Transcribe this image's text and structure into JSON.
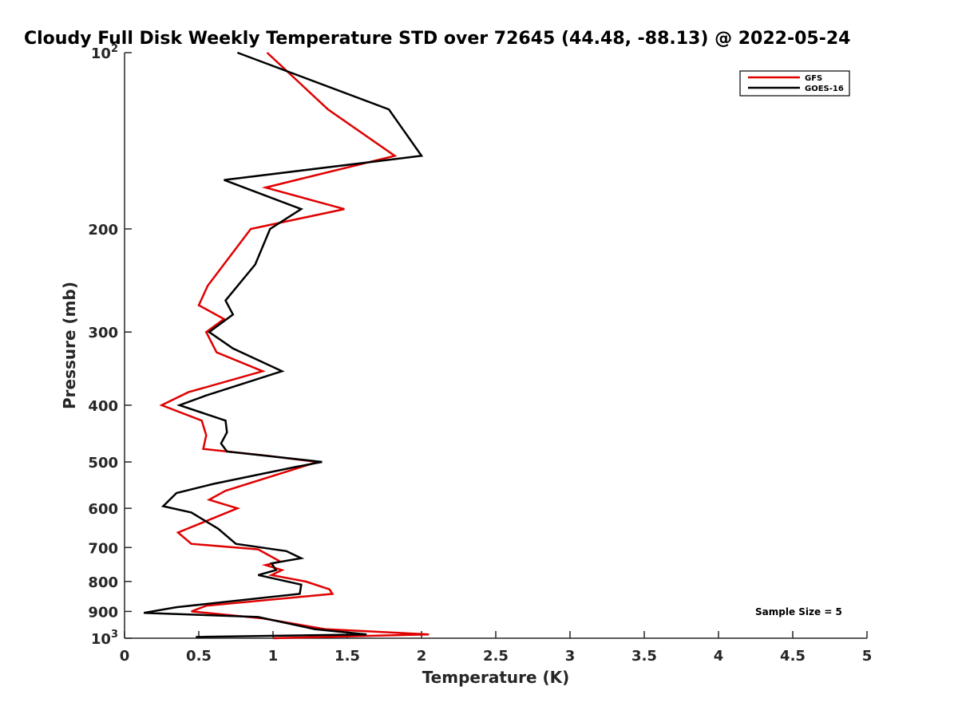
{
  "chart_data": {
    "type": "line",
    "title": "Cloudy Full Disk Weekly Temperature STD over 72645 (44.48, -88.13) @ 2022-05-24",
    "xlabel": "Temperature (K)",
    "ylabel": "Pressure (mb)",
    "xlim": [
      0,
      5
    ],
    "ylim": [
      100,
      1000
    ],
    "yscale": "log",
    "y_reversed": true,
    "x_ticks": [
      "0",
      "0.5",
      "1",
      "1.5",
      "2",
      "2.5",
      "3",
      "3.5",
      "4",
      "4.5",
      "5"
    ],
    "y_ticks": [
      {
        "value": 100,
        "label": "10",
        "sup": "2"
      },
      {
        "value": 200,
        "label": "200"
      },
      {
        "value": 300,
        "label": "300"
      },
      {
        "value": 400,
        "label": "400"
      },
      {
        "value": 500,
        "label": "500"
      },
      {
        "value": 600,
        "label": "600"
      },
      {
        "value": 700,
        "label": "700"
      },
      {
        "value": 800,
        "label": "800"
      },
      {
        "value": 900,
        "label": "900"
      },
      {
        "value": 1000,
        "label": "10",
        "sup": "3"
      }
    ],
    "grid": false,
    "legend_position": "top-right",
    "annotation": "Sample Size = 5",
    "series": [
      {
        "name": "GFS",
        "color": "#e00000",
        "points": [
          [
            0.96,
            100
          ],
          [
            1.37,
            125
          ],
          [
            1.82,
            150
          ],
          [
            0.95,
            170
          ],
          [
            1.48,
            185
          ],
          [
            0.85,
            200
          ],
          [
            0.56,
            250
          ],
          [
            0.5,
            270
          ],
          [
            0.67,
            285
          ],
          [
            0.55,
            300
          ],
          [
            0.62,
            325
          ],
          [
            0.93,
            350
          ],
          [
            0.43,
            380
          ],
          [
            0.25,
            400
          ],
          [
            0.52,
            425
          ],
          [
            0.55,
            450
          ],
          [
            0.53,
            475
          ],
          [
            0.96,
            488
          ],
          [
            1.3,
            500
          ],
          [
            0.68,
            560
          ],
          [
            0.57,
            580
          ],
          [
            0.76,
            600
          ],
          [
            0.36,
            660
          ],
          [
            0.45,
            690
          ],
          [
            0.9,
            705
          ],
          [
            1.05,
            740
          ],
          [
            0.95,
            750
          ],
          [
            1.06,
            765
          ],
          [
            0.99,
            780
          ],
          [
            1.22,
            800
          ],
          [
            1.38,
            825
          ],
          [
            1.4,
            840
          ],
          [
            0.55,
            880
          ],
          [
            0.45,
            900
          ],
          [
            0.93,
            925
          ],
          [
            1.35,
            965
          ],
          [
            2.05,
            985
          ],
          [
            1.0,
            1000
          ]
        ]
      },
      {
        "name": "GOES-16",
        "color": "#000000",
        "points": [
          [
            0.76,
            100
          ],
          [
            1.78,
            125
          ],
          [
            2.0,
            150
          ],
          [
            0.67,
            165
          ],
          [
            1.19,
            185
          ],
          [
            0.98,
            200
          ],
          [
            0.88,
            230
          ],
          [
            0.68,
            265
          ],
          [
            0.73,
            280
          ],
          [
            0.57,
            300
          ],
          [
            0.73,
            320
          ],
          [
            1.06,
            350
          ],
          [
            0.55,
            385
          ],
          [
            0.37,
            400
          ],
          [
            0.68,
            425
          ],
          [
            0.69,
            445
          ],
          [
            0.65,
            465
          ],
          [
            0.69,
            480
          ],
          [
            1.33,
            500
          ],
          [
            1.15,
            510
          ],
          [
            0.6,
            545
          ],
          [
            0.35,
            565
          ],
          [
            0.26,
            595
          ],
          [
            0.45,
            610
          ],
          [
            0.63,
            650
          ],
          [
            0.75,
            690
          ],
          [
            1.09,
            710
          ],
          [
            1.19,
            730
          ],
          [
            0.99,
            745
          ],
          [
            1.02,
            765
          ],
          [
            0.9,
            780
          ],
          [
            1.19,
            810
          ],
          [
            1.18,
            840
          ],
          [
            0.35,
            885
          ],
          [
            0.13,
            905
          ],
          [
            0.9,
            920
          ],
          [
            1.28,
            965
          ],
          [
            1.63,
            985
          ],
          [
            0.48,
            995
          ]
        ]
      }
    ]
  }
}
